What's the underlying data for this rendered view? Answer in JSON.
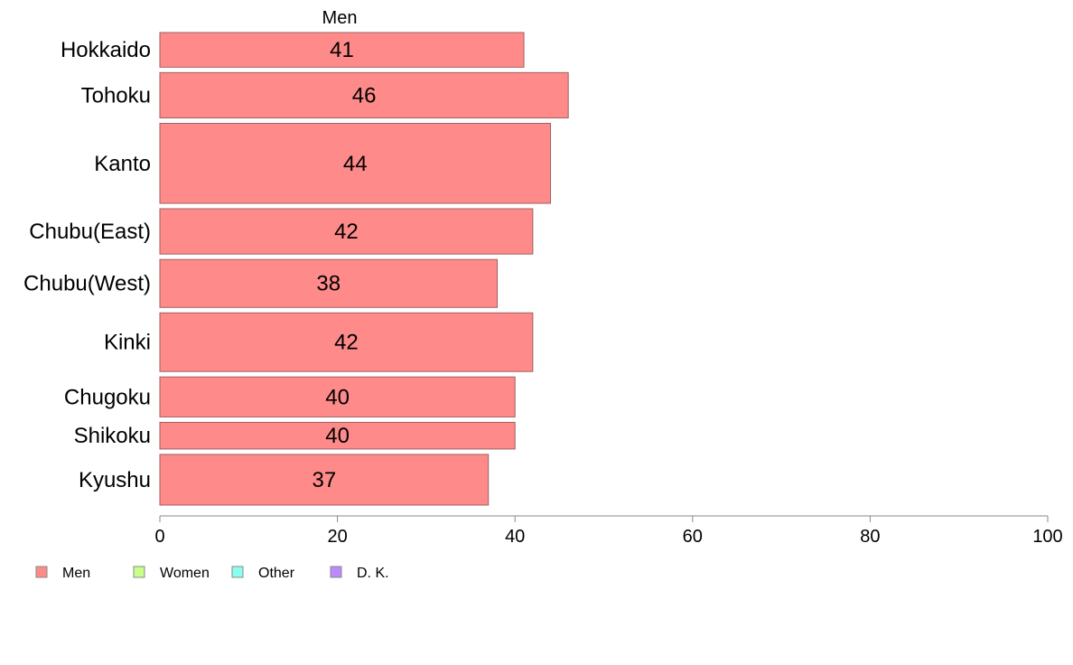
{
  "chart_data": {
    "type": "bar",
    "orientation": "horizontal",
    "categories": [
      "Hokkaido",
      "Tohoku",
      "Kanto",
      "Chubu(East)",
      "Chubu(West)",
      "Kinki",
      "Chugoku",
      "Shikoku",
      "Kyushu"
    ],
    "category_weights": [
      1.3,
      1.7,
      3.0,
      1.7,
      1.8,
      2.2,
      1.5,
      1.0,
      1.9
    ],
    "series": [
      {
        "name": "Men",
        "values": [
          41,
          46,
          44,
          42,
          38,
          42,
          40,
          40,
          37
        ]
      }
    ],
    "xlim": [
      0,
      100
    ],
    "xticks": [
      0,
      20,
      40,
      60,
      80,
      100
    ],
    "grid": false,
    "legend": {
      "placement": "bottom-left",
      "entries": [
        {
          "name": "Men",
          "color": "#ff8a8a"
        },
        {
          "name": "Women",
          "color": "#c8ff8a"
        },
        {
          "name": "Other",
          "color": "#8affef"
        },
        {
          "name": "D. K.",
          "color": "#bb8aff"
        }
      ]
    },
    "bar_color": "#ff8a8a",
    "bar_edge_color": "#a06060"
  }
}
